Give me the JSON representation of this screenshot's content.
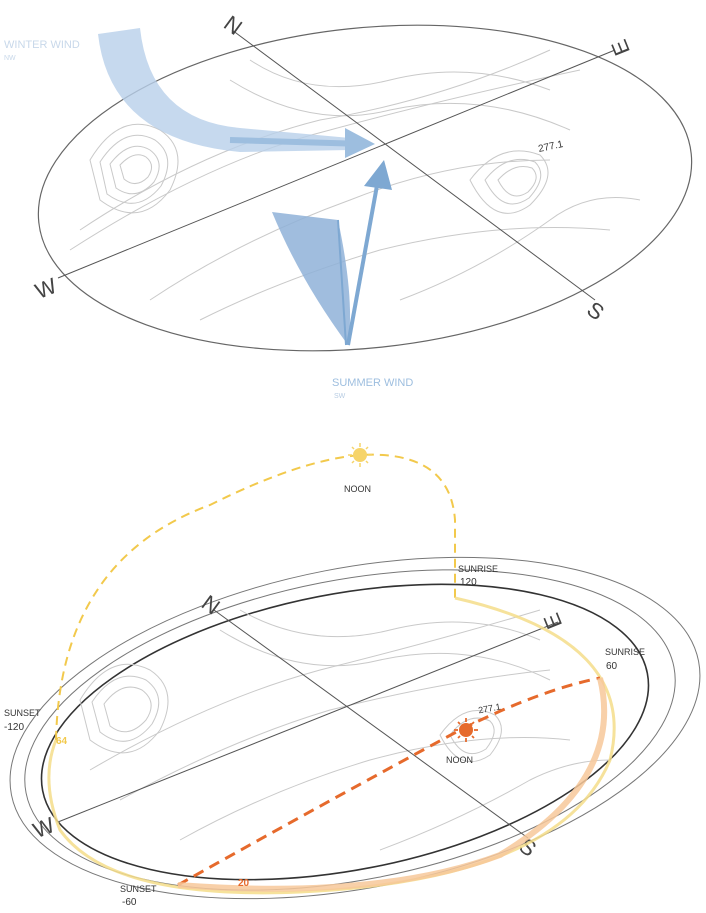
{
  "wind_diagram": {
    "compass": {
      "north": "N",
      "east": "E",
      "south": "S",
      "west": "W"
    },
    "elevation_label": "277.1",
    "winter_wind": {
      "label": "WINTER WIND",
      "sub": "NW"
    },
    "summer_wind": {
      "label": "SUMMER WIND",
      "sub": "SW"
    },
    "colors": {
      "wind": "#9dbedf",
      "wind_dark": "#6f9fcb",
      "axis": "#555555"
    }
  },
  "sun_diagram": {
    "compass": {
      "north": "N",
      "east": "E",
      "south": "S",
      "west": "W"
    },
    "elevation_label": "277.1",
    "summer_path": {
      "noon_label": "NOON",
      "sunrise_label": "SUNRISE",
      "sunrise_angle": "120",
      "sunset_label": "SUNSET",
      "sunset_angle": "-120",
      "arc_label": "64",
      "color": "#f2c94c"
    },
    "winter_path": {
      "noon_label": "NOON",
      "sunrise_label": "SUNRISE",
      "sunrise_angle": "60",
      "sunset_label": "SUNSET",
      "sunset_angle": "-60",
      "arc_label": "20",
      "color": "#e66a2c"
    }
  }
}
